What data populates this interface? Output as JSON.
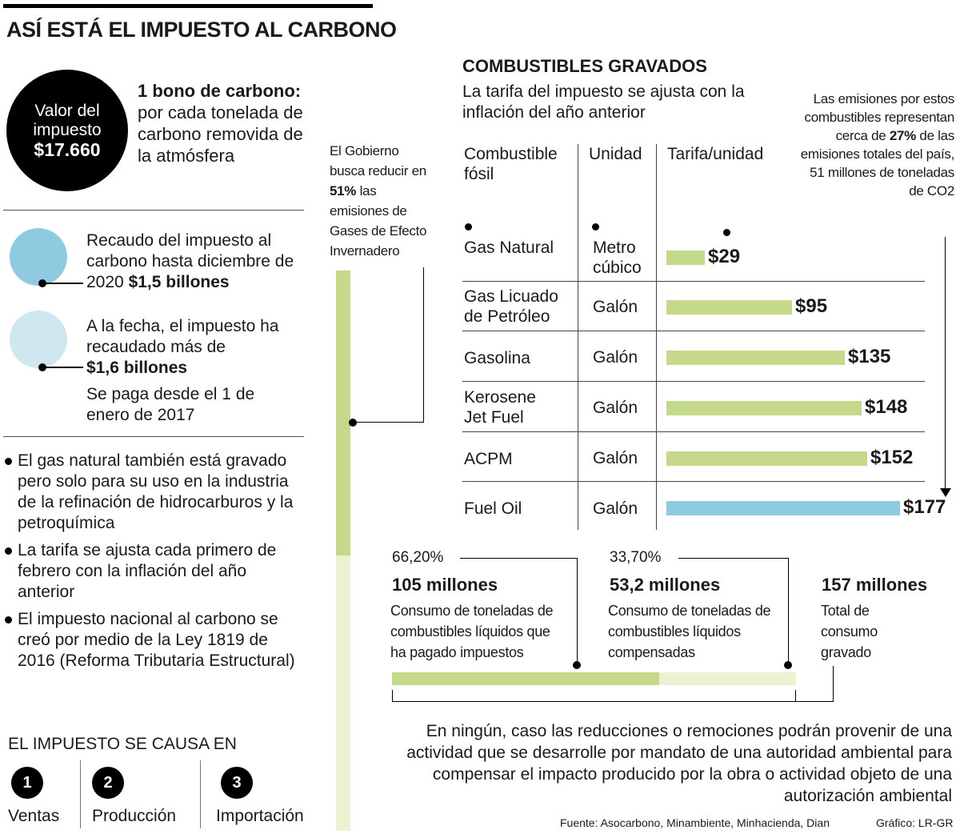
{
  "title": "ASÍ ESTÁ EL IMPUESTO AL CARBONO",
  "valor": {
    "line1": "Valor del",
    "line2": "impuesto",
    "amount": "$17.660"
  },
  "bono": {
    "bold": "1 bono de carbono:",
    "text": "por cada tonelada de carbono removida de la atmósfera"
  },
  "recaudo": {
    "text": "Recaudo del impuesto al carbono hasta diciembre de 2020",
    "amount": "$1,5 billones"
  },
  "fecha": {
    "text": "A la fecha, el impuesto ha recaudado más de",
    "amount": "$1,6 billones",
    "extra": "Se paga desde el 1 de enero de 2017"
  },
  "bullets": [
    "El gas natural también está gravado pero solo para su uso en la industria de la refinación de hidrocarburos y la petroquímica",
    "La tarifa se ajusta cada primero de febrero con la inflación del año anterior",
    "El impuesto nacional al carbono se creó por medio de la Ley 1819 de 2016 (Reforma Tributaria Estructural)"
  ],
  "causa": {
    "title": "EL IMPUESTO SE CAUSA EN",
    "items": [
      {
        "num": "1",
        "label": "Ventas"
      },
      {
        "num": "2",
        "label": "Producción"
      },
      {
        "num": "3",
        "label": "Importación"
      }
    ]
  },
  "gobierno": {
    "pre": "El Gobierno busca reducir en",
    "pct": "51%",
    "post": "las emisiones de Gases de Efecto Invernadero"
  },
  "combustibles": {
    "title": "COMBUSTIBLES GRAVADOS",
    "subtitle": "La tarifa del impuesto se ajusta con la inflación del año anterior",
    "headers": {
      "fuel": "Combustible fósil",
      "unit": "Unidad",
      "rate": "Tarifa/unidad"
    }
  },
  "emisiones": {
    "pre": "Las emisiones por estos combustibles representan cerca de",
    "pct": "27%",
    "post": "de las emisiones totales del país, 51 millones de toneladas de CO2"
  },
  "chart_data": {
    "type": "bar",
    "categories": [
      "Gas Natural",
      "Gas Licuado de Petróleo",
      "Gasolina",
      "Kerosene Jet Fuel",
      "ACPM",
      "Fuel Oil"
    ],
    "units": [
      "Metro cúbico",
      "Galón",
      "Galón",
      "Galón",
      "Galón",
      "Galón"
    ],
    "values": [
      29,
      95,
      135,
      148,
      152,
      177
    ],
    "labels": [
      "$29",
      "$95",
      "$135",
      "$148",
      "$152",
      "$177"
    ],
    "colors": [
      "#c5d98a",
      "#c5d98a",
      "#c5d98a",
      "#c5d98a",
      "#c5d98a",
      "#8ecae0"
    ],
    "xlabel": "",
    "ylabel": "Tarifa/unidad"
  },
  "consumo": {
    "pagado": {
      "pct": "66,20%",
      "amount": "105 millones",
      "desc": "Consumo de toneladas de combustibles líquidos que ha pagado impuestos",
      "share": 0.662
    },
    "compensado": {
      "pct": "33,70%",
      "amount": "53,2 millones",
      "desc": "Consumo de toneladas de combustibles líquidos compensadas",
      "share": 0.337
    },
    "total": {
      "amount": "157 millones",
      "desc": "Total de consumo gravado"
    }
  },
  "footnote": "En ningún, caso las reducciones o remociones podrán provenir de una actividad que se desarrolle por mandato de una autoridad ambiental para compensar el impacto producido por la obra o actividad objeto de una autorización ambiental",
  "fuente": "Fuente: Asocarbono, Minambiente, Minhacienda, Dian",
  "grafico": "Gráfico: LR-GR",
  "colors": {
    "green": "#c5d98a",
    "light_green": "#eaf2d2",
    "blue": "#8ecae0",
    "light_blue": "#cfe8f0",
    "black": "#000000"
  }
}
